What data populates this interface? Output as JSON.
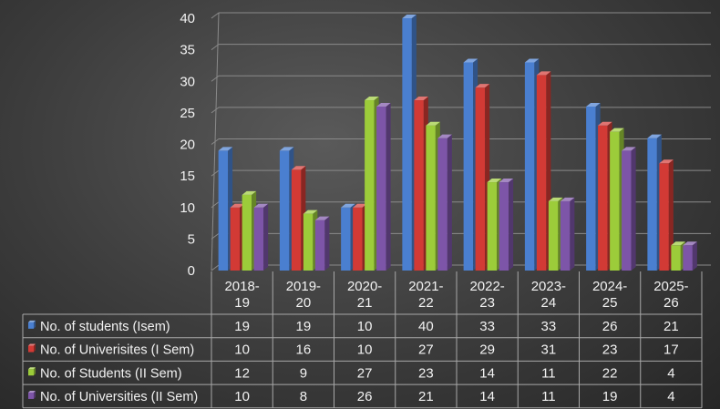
{
  "chart_data": {
    "type": "bar",
    "style": "3d-clustered-column-with-data-table",
    "categories": [
      "2018-\n19",
      "2019-\n20",
      "2020-\n21",
      "2021-\n22",
      "2022-\n23",
      "2023-\n24",
      "2024-\n25",
      "2025-\n26"
    ],
    "series": [
      {
        "name": "No. of students (Isem)",
        "color": "#4a7fd0",
        "values": [
          19,
          19,
          10,
          40,
          33,
          33,
          26,
          21
        ]
      },
      {
        "name": "No. of Univerisites (I Sem)",
        "color": "#d23a35",
        "values": [
          10,
          16,
          10,
          27,
          29,
          31,
          23,
          17
        ]
      },
      {
        "name": "No. of Students (II Sem)",
        "color": "#9ccc3a",
        "values": [
          12,
          9,
          27,
          23,
          14,
          11,
          22,
          4
        ]
      },
      {
        "name": "No. of Universities (II Sem)",
        "color": "#7d55a8",
        "values": [
          10,
          8,
          26,
          21,
          14,
          11,
          19,
          4
        ]
      }
    ],
    "y_ticks": [
      0,
      5,
      10,
      15,
      20,
      25,
      30,
      35,
      40
    ],
    "ylim": [
      0,
      40
    ],
    "grid": true,
    "legend": "data-table-left"
  }
}
